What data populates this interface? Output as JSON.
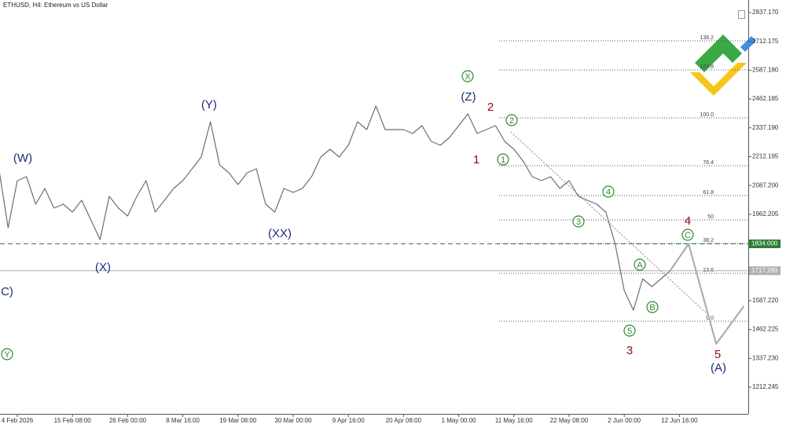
{
  "chart_data": {
    "type": "line",
    "title": "ETHUSD, H4:  Ethereum vs US Dollar",
    "categories": [
      null,
      null,
      "4 Feb 2026",
      null,
      null,
      null,
      null,
      null,
      "15 Feb 08:00",
      null,
      null,
      null,
      null,
      null,
      "26 Feb 00:00",
      null,
      null,
      null,
      null,
      null,
      "8 Mar 16:00",
      null,
      null,
      null,
      null,
      null,
      "19 Mar 08:00",
      null,
      null,
      null,
      null,
      null,
      "30 Mar 00:00",
      null,
      null,
      null,
      null,
      null,
      "9 Apr 16:00",
      null,
      null,
      null,
      null,
      null,
      "20 Apr 08:00",
      null,
      null,
      null,
      null,
      null,
      "1 May 00:00",
      null,
      null,
      null,
      null,
      null,
      "11 May 16:00",
      null,
      null,
      null,
      null,
      null,
      "22 May 08:00",
      null,
      null,
      null,
      null,
      null,
      "2 Jun 00:00",
      null,
      null,
      null,
      null,
      null,
      "12 Jun 16:00",
      null,
      null,
      null,
      null,
      null,
      null,
      null
    ],
    "series": [
      {
        "color": "#6e6e6e",
        "values": [
          2159.3,
          1903.8,
          2108.2,
          2125.2,
          2006.0,
          2074.1,
          1989.0,
          2006.0,
          1971.9,
          2023.0,
          1937.9,
          1852.7,
          2040.0,
          1989.0,
          1954.9,
          2040.0,
          2108.2,
          1971.9,
          2023.0,
          2074.1,
          2108.2,
          2159.3,
          2210.4,
          2363.7,
          2176.3,
          2142.2,
          2091.1,
          2142.2,
          2159.3,
          2006.0,
          1971.9,
          2074.1,
          2057.1,
          2074.1,
          2125.2,
          2210.4,
          2244.4,
          2210.4,
          2261.5,
          2363.7,
          2329.6,
          2431.8,
          2329.6,
          2329.6,
          2329.6,
          2312.6,
          2346.6,
          2278.5,
          2261.5,
          2295.5,
          2346.6,
          2397.7,
          2312.6,
          2329.6,
          2346.6,
          2278.5,
          2244.4,
          2193.3,
          2125.2,
          2108.2,
          2125.2,
          2074.1,
          2108.2,
          2040.0,
          2023.0,
          2006.0,
          1971.9,
          1835.7,
          1631.3,
          1546.1,
          1682.4,
          1648.3,
          1682.4,
          1717.3,
          null,
          null,
          null,
          null,
          null,
          null,
          null,
          null
        ]
      },
      {
        "color": "#a8a8a8",
        "values": [
          null,
          null,
          null,
          null,
          null,
          null,
          null,
          null,
          null,
          null,
          null,
          null,
          null,
          null,
          null,
          null,
          null,
          null,
          null,
          null,
          null,
          null,
          null,
          null,
          null,
          null,
          null,
          null,
          null,
          null,
          null,
          null,
          null,
          null,
          null,
          null,
          null,
          null,
          null,
          null,
          null,
          null,
          null,
          null,
          null,
          null,
          null,
          null,
          null,
          null,
          null,
          null,
          null,
          null,
          null,
          null,
          null,
          null,
          null,
          null,
          null,
          null,
          null,
          null,
          null,
          null,
          null,
          null,
          null,
          null,
          null,
          null,
          null,
          1717.3,
          1775.6,
          1834.0,
          1689.0,
          1544.0,
          1400.0,
          1454.0,
          1509.0,
          1563.0
        ]
      }
    ],
    "ylim": [
      1096.4,
      2891.7
    ],
    "yticks": [
      {
        "value": 2837.17,
        "label": "2837.170"
      },
      2712.175,
      {
        "value": 2587.18,
        "label": "2587.180"
      },
      2462.185,
      {
        "value": 2337.19,
        "label": "2337.190"
      },
      2212.195,
      {
        "value": 2087.2,
        "label": "2087.200"
      },
      1962.205,
      {
        "value": 1587.22,
        "label": "1587.220"
      },
      1462.225,
      {
        "value": 1337.23,
        "label": "1337.230"
      },
      1212.245
    ],
    "price_lines": [
      {
        "value": 1834.0,
        "label": "1834.000",
        "color": "#2e7d32"
      },
      {
        "value": 1717.289,
        "label": "1717.289",
        "color": "#b0b0b0"
      }
    ],
    "fib_levels": [
      {
        "label": "138.2",
        "value": 2714.6
      },
      {
        "label": "123.8",
        "value": 2588.5
      },
      {
        "label": "100.0",
        "value": 2380.7
      },
      {
        "label": "76.4",
        "value": 2172.9
      },
      {
        "label": "61.8",
        "value": 2043.5
      },
      {
        "label": "50",
        "value": 1937.9
      },
      {
        "label": "38.2",
        "value": 1835.7
      },
      {
        "label": "23.6",
        "value": 1706.2
      },
      {
        "label": "0.0",
        "value": 1498.4
      }
    ],
    "annotations": [
      {
        "text": "(W)",
        "color": "#1f2a7a"
      },
      {
        "text": "(X)",
        "color": "#1f2a7a"
      },
      {
        "text": "(Y)",
        "color": "#1f2a7a"
      },
      {
        "text": "(XX)",
        "color": "#1f2a7a"
      },
      {
        "text": "(Z)",
        "color": "#1f2a7a"
      },
      {
        "text": "(A)",
        "color": "#1f2a7a"
      },
      {
        "text": "C)",
        "color": "#1f2a7a"
      },
      {
        "text": "X",
        "color": "#2e8b2e",
        "circled": true
      },
      {
        "text": "2",
        "color": "#2e8b2e",
        "circled": true
      },
      {
        "text": "1",
        "color": "#2e8b2e",
        "circled": true
      },
      {
        "text": "4",
        "color": "#2e8b2e",
        "circled": true
      },
      {
        "text": "3",
        "color": "#2e8b2e",
        "circled": true
      },
      {
        "text": "A",
        "color": "#2e8b2e",
        "circled": true
      },
      {
        "text": "B",
        "color": "#2e8b2e",
        "circled": true
      },
      {
        "text": "5",
        "color": "#2e8b2e",
        "circled": true
      },
      {
        "text": "C",
        "color": "#2e8b2e",
        "circled": true
      },
      {
        "text": "Y",
        "color": "#2e8b2e",
        "circled": true
      },
      {
        "text": "2",
        "color": "#8b1010"
      },
      {
        "text": "1",
        "color": "#8b1010"
      },
      {
        "text": "3",
        "color": "#8b1010"
      },
      {
        "text": "4",
        "color": "#8b1010"
      },
      {
        "text": "5",
        "color": "#8b1010"
      }
    ]
  }
}
